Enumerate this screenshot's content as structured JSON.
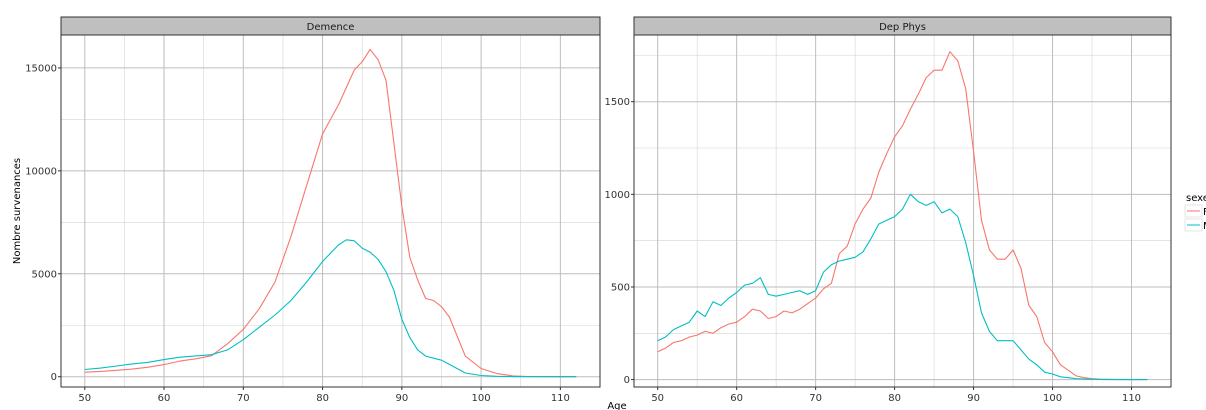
{
  "figure": {
    "xlabel": "Age",
    "ylabel": "Nombre survenances",
    "legend_title": "sexe",
    "legend_placement": "right"
  },
  "colors": {
    "F": "#F8766D",
    "M": "#00BFC4",
    "strip_fill": "#BFBFBF",
    "grid_major": "#BDBDBD",
    "grid_minor": "#D4D4D4",
    "panel_border": "#333333"
  },
  "chart_data": [
    {
      "type": "line",
      "title": "Demence",
      "xlim": [
        47,
        115
      ],
      "ylim": [
        -500,
        16600
      ],
      "xticks": [
        50,
        60,
        70,
        80,
        90,
        100,
        110
      ],
      "yticks": [
        0,
        5000,
        10000,
        15000
      ],
      "grid": true,
      "series": [
        {
          "name": "F",
          "x": [
            50,
            52,
            54,
            56,
            58,
            60,
            62,
            64,
            66,
            68,
            70,
            72,
            74,
            76,
            78,
            80,
            82,
            84,
            85,
            86,
            87,
            88,
            90,
            91,
            92,
            93,
            94,
            95,
            96,
            98,
            100,
            102,
            104,
            106,
            108,
            110,
            112
          ],
          "y": [
            220,
            260,
            310,
            370,
            460,
            590,
            760,
            870,
            1020,
            1600,
            2300,
            3300,
            4600,
            6800,
            9300,
            11800,
            13200,
            14900,
            15300,
            15900,
            15400,
            14400,
            8300,
            5800,
            4700,
            3800,
            3700,
            3400,
            2900,
            1000,
            400,
            150,
            40,
            10,
            5,
            2,
            0
          ]
        },
        {
          "name": "M",
          "x": [
            50,
            52,
            54,
            56,
            58,
            60,
            62,
            64,
            66,
            68,
            70,
            72,
            74,
            76,
            78,
            80,
            82,
            83,
            84,
            85,
            86,
            87,
            88,
            89,
            90,
            91,
            92,
            93,
            94,
            95,
            96,
            98,
            100,
            102,
            104,
            106,
            108,
            110,
            112
          ],
          "y": [
            350,
            420,
            520,
            620,
            700,
            830,
            950,
            1010,
            1070,
            1300,
            1800,
            2400,
            3000,
            3700,
            4600,
            5600,
            6400,
            6650,
            6600,
            6250,
            6050,
            5700,
            5100,
            4200,
            2800,
            1900,
            1300,
            1000,
            900,
            800,
            600,
            180,
            60,
            20,
            5,
            2,
            1,
            0,
            0
          ]
        }
      ]
    },
    {
      "type": "line",
      "title": "Dep Phys",
      "xlim": [
        47,
        115
      ],
      "ylim": [
        -40,
        1860
      ],
      "xticks": [
        50,
        60,
        70,
        80,
        90,
        100,
        110
      ],
      "yticks": [
        0,
        500,
        1000,
        1500
      ],
      "grid": true,
      "series": [
        {
          "name": "F",
          "x": [
            50,
            51,
            52,
            53,
            54,
            55,
            56,
            57,
            58,
            59,
            60,
            61,
            62,
            63,
            64,
            65,
            66,
            67,
            68,
            69,
            70,
            71,
            72,
            73,
            74,
            75,
            76,
            77,
            78,
            79,
            80,
            81,
            82,
            83,
            84,
            85,
            86,
            87,
            88,
            89,
            90,
            91,
            92,
            93,
            94,
            95,
            96,
            97,
            98,
            99,
            100,
            101,
            102,
            103,
            104,
            105,
            106,
            108,
            110,
            112
          ],
          "y": [
            150,
            170,
            200,
            210,
            230,
            240,
            260,
            250,
            280,
            300,
            310,
            340,
            380,
            370,
            330,
            340,
            370,
            360,
            380,
            410,
            440,
            490,
            520,
            680,
            720,
            840,
            920,
            980,
            1120,
            1220,
            1310,
            1370,
            1460,
            1540,
            1630,
            1670,
            1670,
            1770,
            1720,
            1570,
            1230,
            860,
            700,
            650,
            650,
            700,
            600,
            400,
            340,
            200,
            150,
            80,
            50,
            20,
            10,
            5,
            2,
            1,
            0,
            0
          ]
        },
        {
          "name": "M",
          "x": [
            50,
            51,
            52,
            53,
            54,
            55,
            56,
            57,
            58,
            59,
            60,
            61,
            62,
            63,
            64,
            65,
            66,
            67,
            68,
            69,
            70,
            71,
            72,
            73,
            74,
            75,
            76,
            77,
            78,
            79,
            80,
            81,
            82,
            83,
            84,
            85,
            86,
            87,
            88,
            89,
            90,
            91,
            92,
            93,
            94,
            95,
            96,
            97,
            98,
            99,
            100,
            101,
            102,
            103,
            104,
            105,
            106,
            108,
            110,
            112
          ],
          "y": [
            210,
            230,
            270,
            290,
            310,
            370,
            340,
            420,
            400,
            440,
            470,
            510,
            520,
            550,
            460,
            450,
            460,
            470,
            480,
            460,
            480,
            580,
            620,
            640,
            650,
            660,
            690,
            760,
            840,
            860,
            880,
            920,
            1000,
            960,
            940,
            960,
            900,
            920,
            880,
            740,
            560,
            360,
            260,
            210,
            210,
            210,
            160,
            110,
            80,
            40,
            30,
            15,
            10,
            5,
            3,
            2,
            1,
            0,
            0,
            0
          ]
        }
      ]
    }
  ]
}
